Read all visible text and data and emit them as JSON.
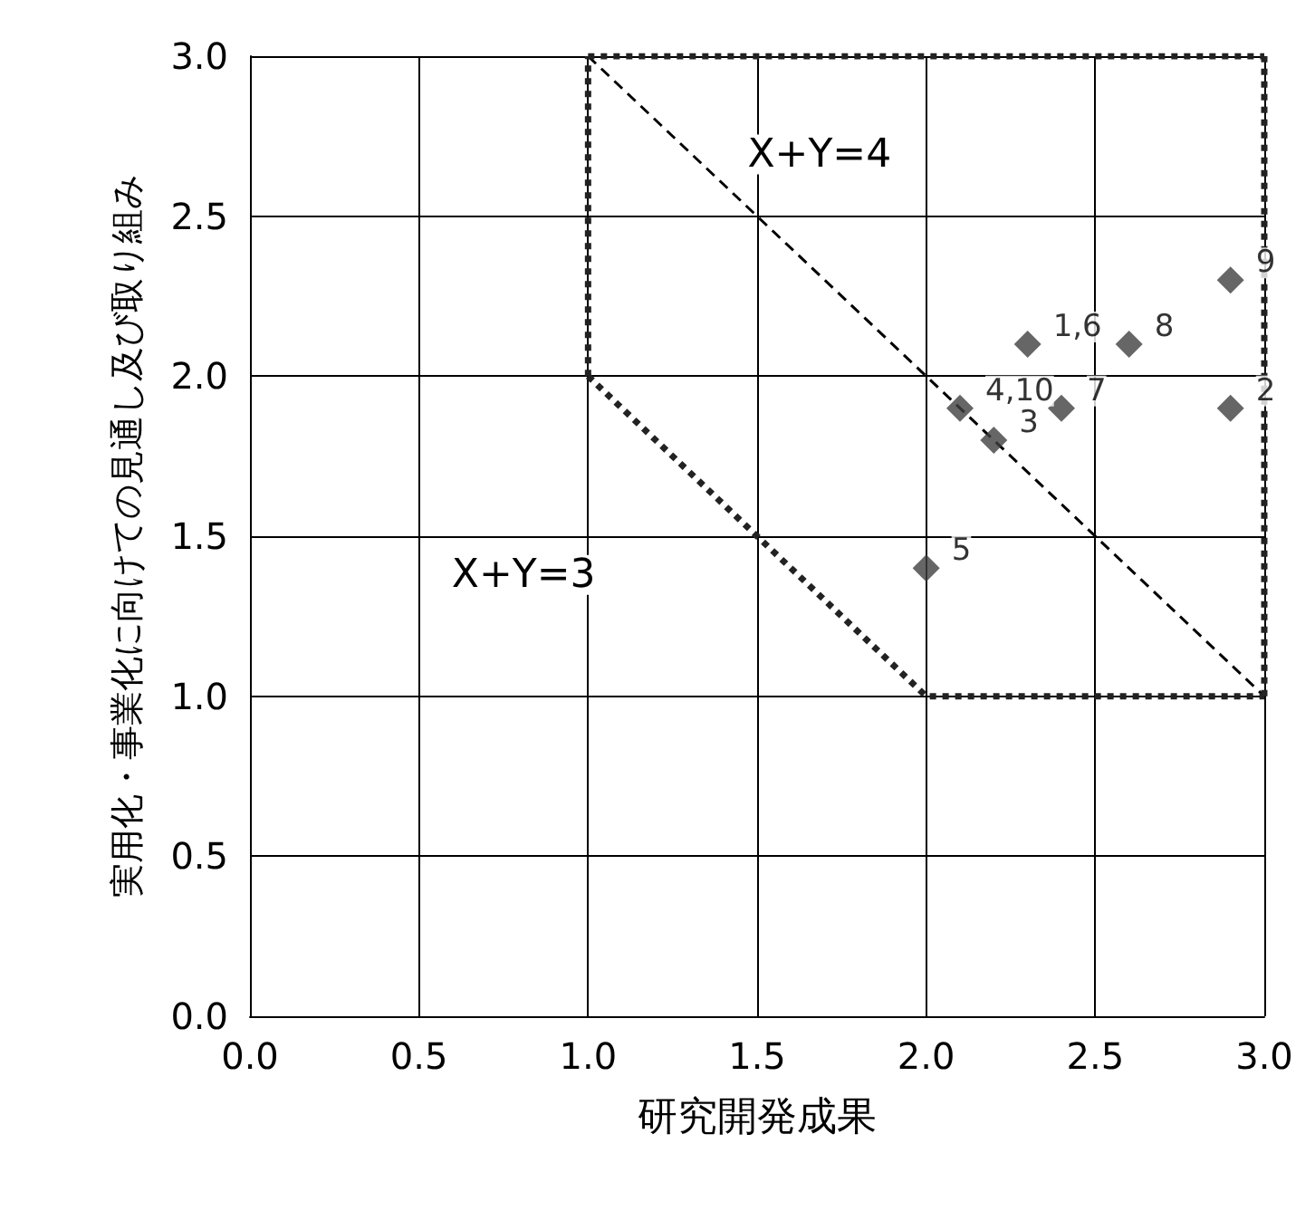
{
  "chart_data": {
    "type": "scatter",
    "xlabel": "研究開発成果",
    "ylabel": "実用化・事業化に向けての見通し及び取り組み",
    "xlim": [
      0,
      3
    ],
    "ylim": [
      0,
      3
    ],
    "xticks": [
      {
        "value": 0,
        "label": "0.0"
      },
      {
        "value": 0.5,
        "label": "0.5"
      },
      {
        "value": 1,
        "label": "1.0"
      },
      {
        "value": 1.5,
        "label": "1.5"
      },
      {
        "value": 2,
        "label": "2.0"
      },
      {
        "value": 2.5,
        "label": "2.5"
      },
      {
        "value": 3,
        "label": "3.0"
      }
    ],
    "yticks": [
      {
        "value": 0,
        "label": "0.0"
      },
      {
        "value": 0.5,
        "label": "0.5"
      },
      {
        "value": 1,
        "label": "1.0"
      },
      {
        "value": 1.5,
        "label": "1.5"
      },
      {
        "value": 2,
        "label": "2.0"
      },
      {
        "value": 2.5,
        "label": "2.5"
      },
      {
        "value": 3,
        "label": "3.0"
      }
    ],
    "grid": true,
    "annotations": [
      "X+Y=4",
      "X+Y=3",
      {
        "text": "1,6",
        "x": 2.3,
        "y": 2.1
      },
      {
        "text": "2",
        "x": 2.9,
        "y": 1.9
      },
      {
        "text": "3",
        "x": 2.2,
        "y": 1.8
      },
      {
        "text": "4,10",
        "x": 2.1,
        "y": 1.9
      },
      {
        "text": "5",
        "x": 2.0,
        "y": 1.4
      },
      {
        "text": "7",
        "x": 2.4,
        "y": 1.9
      },
      {
        "text": "8",
        "x": 2.6,
        "y": 2.1
      },
      {
        "text": "9",
        "x": 2.9,
        "y": 2.3
      }
    ],
    "series": [
      {
        "type": "line",
        "color": "#000000",
        "line_style": "dashed",
        "marker": "none",
        "x": [
          1,
          3
        ],
        "values": [
          3,
          1
        ]
      },
      {
        "type": "line",
        "color": "#222222",
        "line_style": "dotted",
        "marker": "none",
        "x": [
          1,
          2,
          3
        ],
        "values": [
          2,
          1,
          1
        ]
      },
      {
        "type": "line",
        "color": "#222222",
        "line_style": "dotted",
        "marker": "none",
        "x": [
          1,
          3
        ],
        "values": [
          3,
          3
        ]
      },
      {
        "type": "line",
        "color": "#222222",
        "line_style": "dotted",
        "marker": "none",
        "x": [
          1,
          1
        ],
        "values": [
          2,
          3
        ]
      },
      {
        "type": "line",
        "color": "#222222",
        "line_style": "dotted",
        "marker": "none",
        "x": [
          3,
          3
        ],
        "values": [
          1,
          3
        ]
      },
      {
        "color": "#404040",
        "marker": "diamond",
        "x": [
          2.3,
          2.9,
          2.2,
          2.1,
          2.0,
          2.4,
          2.6,
          2.9
        ],
        "values": [
          2.1,
          1.9,
          1.8,
          1.9,
          1.4,
          1.9,
          2.1,
          2.3
        ]
      }
    ]
  }
}
